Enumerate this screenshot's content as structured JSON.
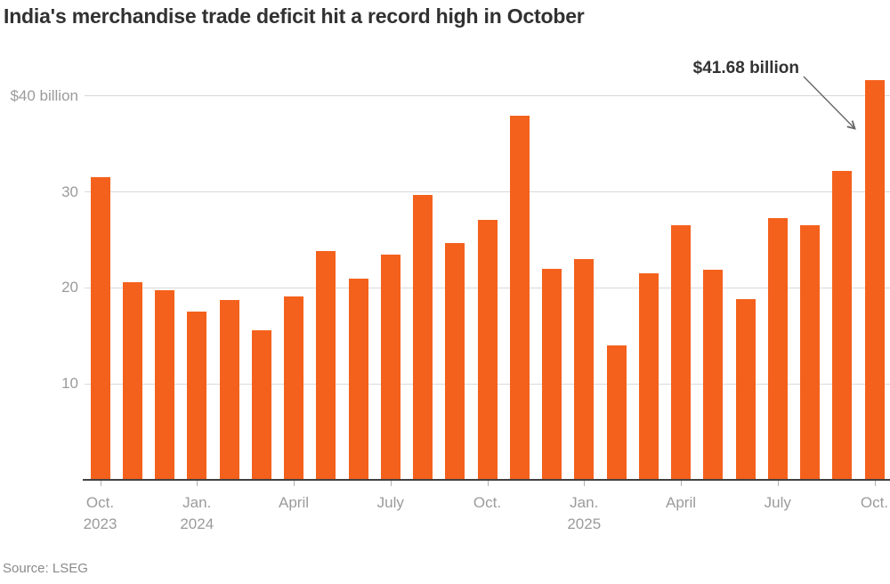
{
  "page": {
    "title": "India's merchandise trade deficit hit a record high in October",
    "source": "Source: LSEG"
  },
  "chart_data": {
    "type": "bar",
    "title": "India's merchandise trade deficit hit a record high in October",
    "unit": "USD billion",
    "bar_color": "#f4611c",
    "grid": true,
    "legend": false,
    "ylim": [
      0,
      42
    ],
    "categories": [
      "Oct. 2023",
      "Nov. 2023",
      "Dec. 2023",
      "Jan. 2024",
      "Feb. 2024",
      "Mar. 2024",
      "Apr. 2024",
      "May 2024",
      "Jun. 2024",
      "Jul. 2024",
      "Aug. 2024",
      "Sep. 2024",
      "Oct. 2024",
      "Nov. 2024",
      "Dec. 2024",
      "Jan. 2025",
      "Feb. 2025",
      "Mar. 2025",
      "Apr. 2025",
      "May 2025",
      "Jun. 2025",
      "Jul. 2025",
      "Aug. 2025",
      "Sep. 2025",
      "Oct. 2025"
    ],
    "values": [
      31.5,
      20.6,
      19.8,
      17.5,
      18.7,
      15.6,
      19.1,
      23.8,
      21.0,
      23.5,
      29.7,
      24.7,
      27.1,
      37.9,
      22.0,
      23.0,
      14.0,
      21.5,
      26.5,
      21.9,
      18.8,
      27.3,
      26.5,
      32.2,
      41.68
    ],
    "y_ticks": [
      {
        "value": 40,
        "label": "$40 billion"
      },
      {
        "value": 30,
        "label": "30"
      },
      {
        "value": 20,
        "label": "20"
      },
      {
        "value": 10,
        "label": "10"
      }
    ],
    "x_ticks": [
      {
        "index": 0,
        "label": "Oct.",
        "year": "2023"
      },
      {
        "index": 3,
        "label": "Jan.",
        "year": "2024"
      },
      {
        "index": 6,
        "label": "April"
      },
      {
        "index": 9,
        "label": "July"
      },
      {
        "index": 12,
        "label": "Oct."
      },
      {
        "index": 15,
        "label": "Jan.",
        "year": "2025"
      },
      {
        "index": 18,
        "label": "April"
      },
      {
        "index": 21,
        "label": "July"
      },
      {
        "index": 24,
        "label": "Oct."
      }
    ],
    "annotation": {
      "text": "$41.68 billion",
      "target": "Oct. 2025"
    },
    "source": "Source: LSEG"
  }
}
